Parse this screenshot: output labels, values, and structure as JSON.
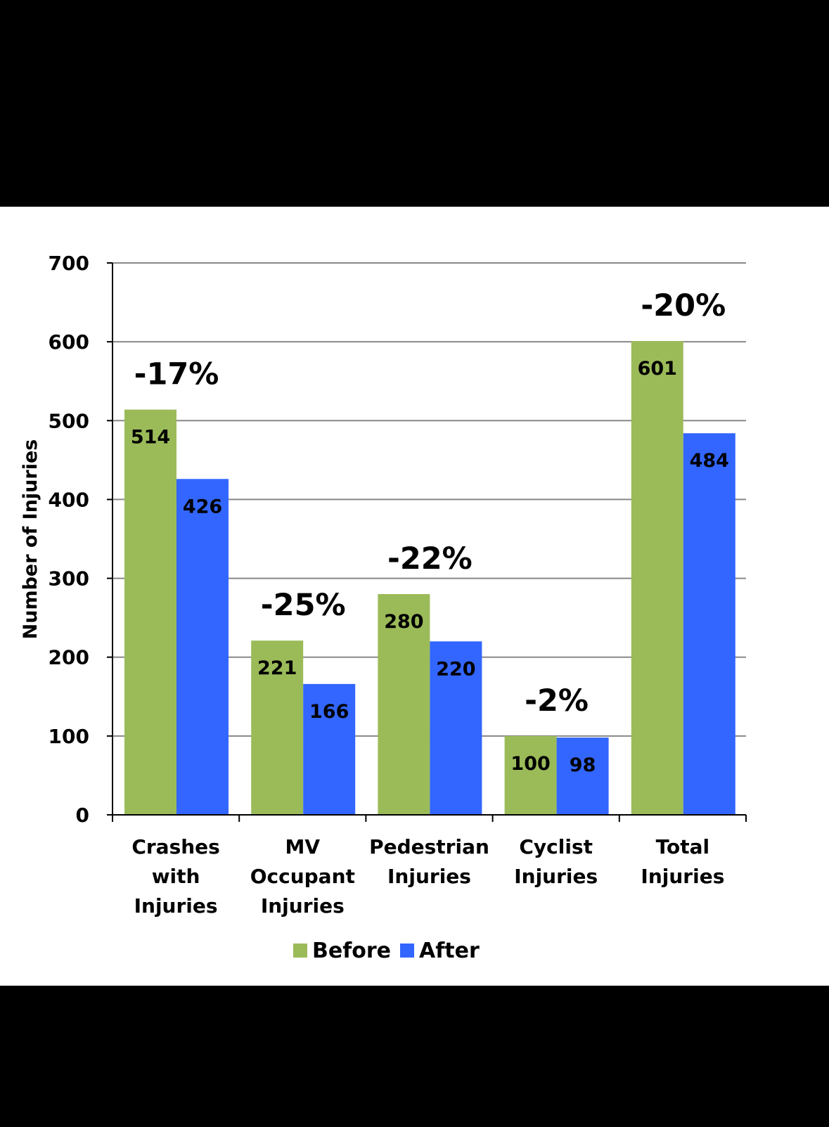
{
  "chart_data": {
    "type": "bar",
    "ylabel": "Number of Injuries",
    "ylim": [
      0,
      700
    ],
    "yticks": [
      0,
      100,
      200,
      300,
      400,
      500,
      600,
      700
    ],
    "grid": true,
    "legend_position": "bottom",
    "categories": [
      [
        "Crashes",
        "with",
        "Injuries"
      ],
      [
        "MV",
        "Occupant",
        "Injuries"
      ],
      [
        "Pedestrian",
        "Injuries"
      ],
      [
        "Cyclist",
        "Injuries"
      ],
      [
        "Total",
        "Injuries"
      ]
    ],
    "series": [
      {
        "name": "Before",
        "color": "#9BBB59",
        "values": [
          514,
          221,
          280,
          100,
          601
        ]
      },
      {
        "name": "After",
        "color": "#3366FF",
        "values": [
          426,
          166,
          220,
          98,
          484
        ]
      }
    ],
    "annotations": [
      "-17%",
      "-25%",
      "-22%",
      "-2%",
      "-20%"
    ]
  }
}
